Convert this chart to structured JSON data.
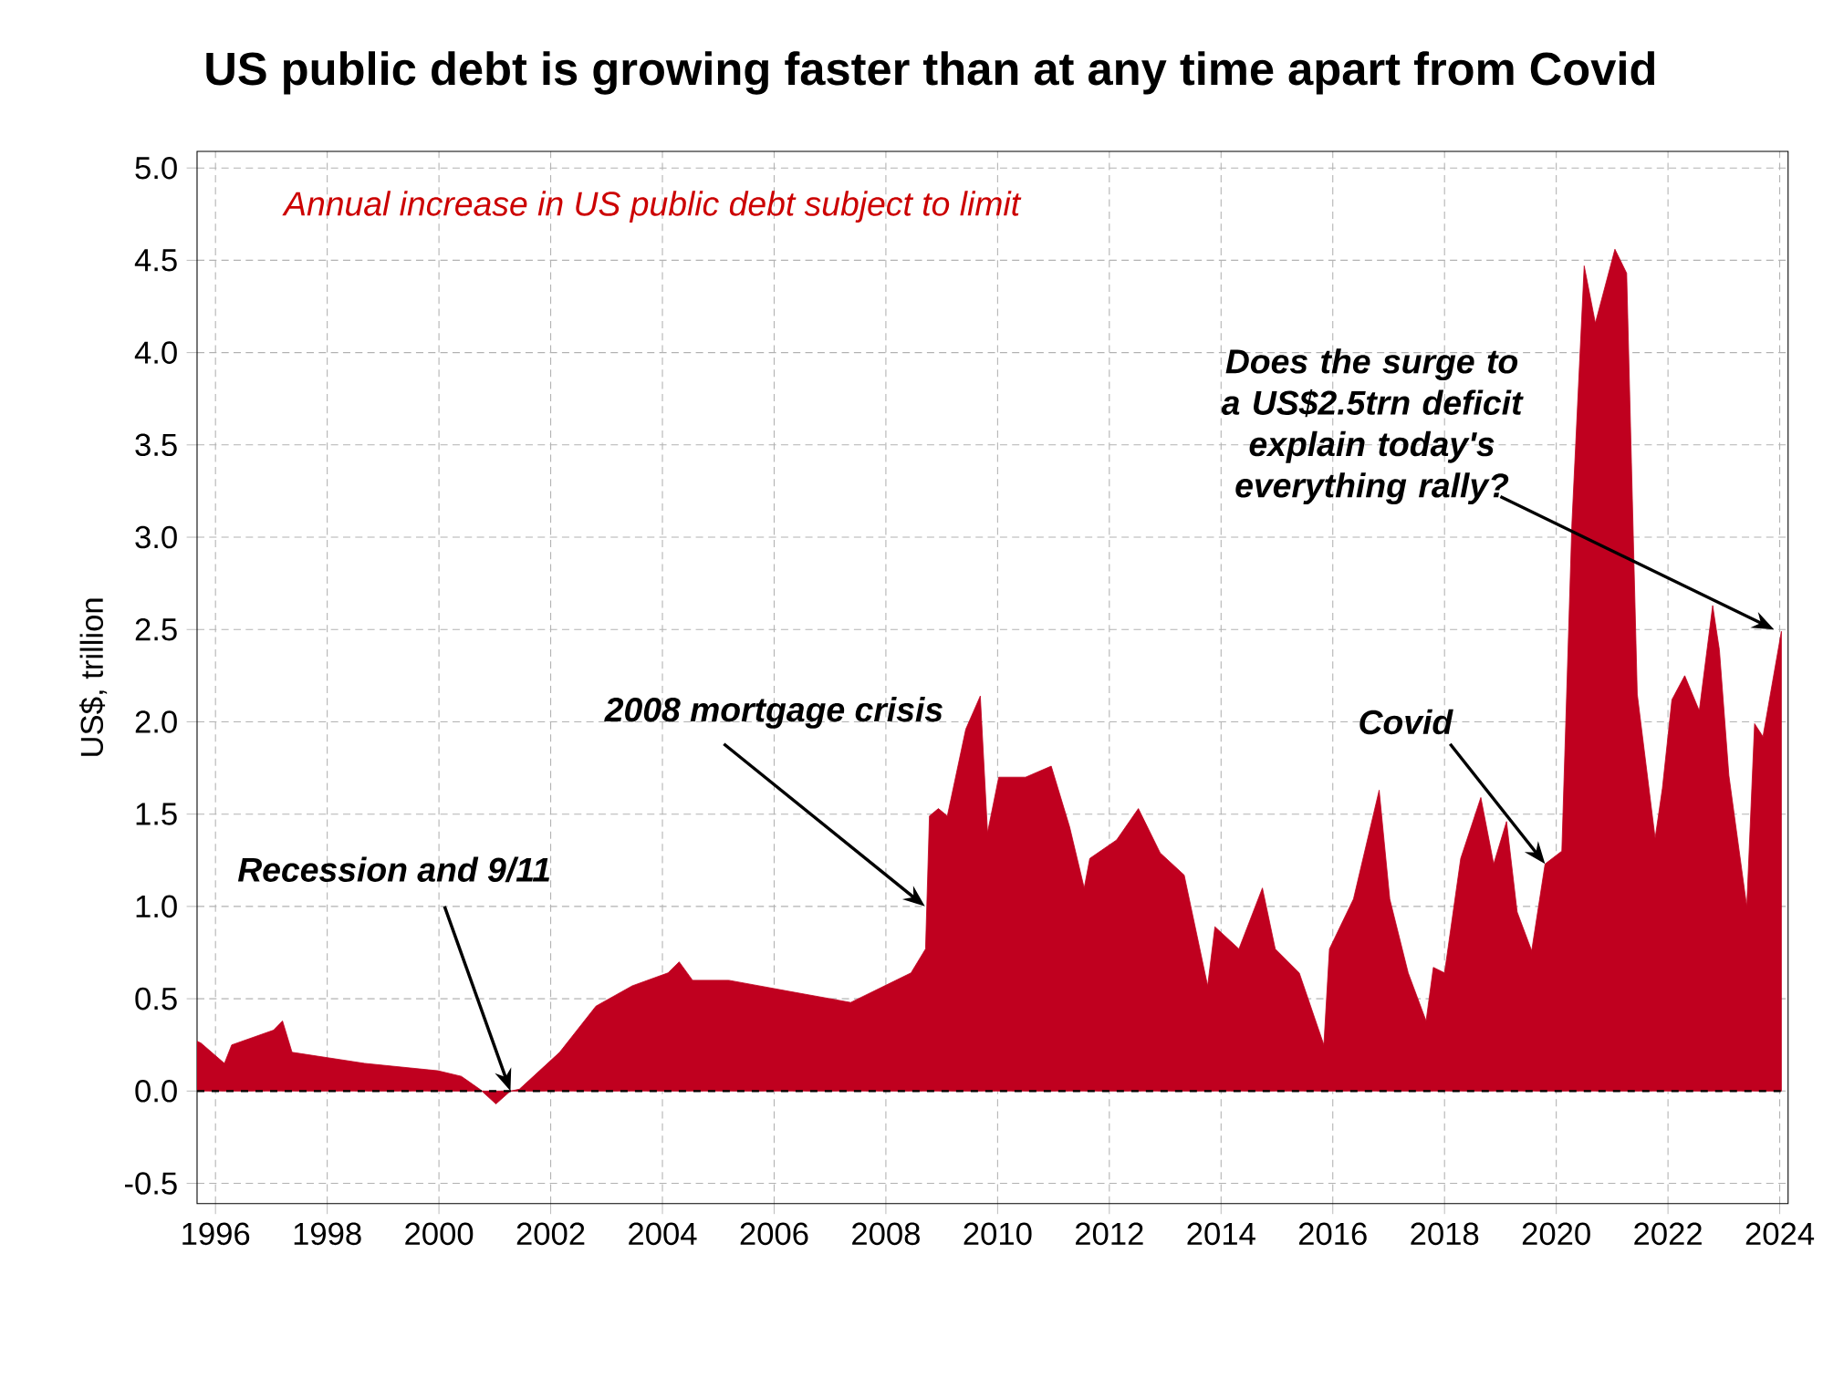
{
  "chart_data": {
    "type": "area",
    "title": "US public debt is growing faster than at any time apart from Covid",
    "subtitle": "Annual increase in US public debt subject to limit",
    "ylabel": "US$, trillion",
    "x": [
      1995.67,
      1995.74,
      1996.16,
      1996.29,
      1997.04,
      1997.2,
      1997.37,
      1998.67,
      1999.98,
      2000.4,
      2000.73,
      2001.02,
      2001.28,
      2001.44,
      2002.16,
      2002.81,
      2003.46,
      2004.1,
      2004.3,
      2004.54,
      2005.19,
      2006.27,
      2007.37,
      2008.45,
      2008.71,
      2008.78,
      2008.94,
      2009.1,
      2009.43,
      2009.69,
      2009.82,
      2010.02,
      2010.5,
      2010.96,
      2011.29,
      2011.55,
      2011.65,
      2012.13,
      2012.52,
      2012.91,
      2013.34,
      2013.76,
      2013.89,
      2014.32,
      2014.74,
      2014.97,
      2015.4,
      2015.84,
      2015.94,
      2016.37,
      2016.83,
      2017.02,
      2017.35,
      2017.67,
      2017.8,
      2018.0,
      2018.29,
      2018.65,
      2018.88,
      2019.11,
      2019.3,
      2019.56,
      2019.8,
      2020.1,
      2020.28,
      2020.5,
      2020.7,
      2021.05,
      2021.26,
      2021.45,
      2021.77,
      2021.9,
      2022.07,
      2022.3,
      2022.56,
      2022.8,
      2022.92,
      2023.09,
      2023.41,
      2023.55,
      2023.7,
      2024.03
    ],
    "series": [
      {
        "color": "#c0001f",
        "values": [
          0.27,
          0.26,
          0.15,
          0.25,
          0.33,
          0.38,
          0.21,
          0.15,
          0.11,
          0.08,
          0.01,
          -0.07,
          0.0,
          0.01,
          0.21,
          0.46,
          0.57,
          0.64,
          0.7,
          0.6,
          0.6,
          0.54,
          0.48,
          0.64,
          0.77,
          1.49,
          1.53,
          1.49,
          1.96,
          2.14,
          1.4,
          1.7,
          1.7,
          1.76,
          1.43,
          1.1,
          1.26,
          1.36,
          1.53,
          1.29,
          1.17,
          0.57,
          0.89,
          0.77,
          1.1,
          0.77,
          0.64,
          0.25,
          0.77,
          1.04,
          1.63,
          1.04,
          0.64,
          0.38,
          0.67,
          0.64,
          1.26,
          1.59,
          1.23,
          1.46,
          0.97,
          0.76,
          1.23,
          1.3,
          3.07,
          4.47,
          4.16,
          4.56,
          4.43,
          2.15,
          1.37,
          1.64,
          2.12,
          2.25,
          2.06,
          2.63,
          2.39,
          1.71,
          1.0,
          1.99,
          1.92,
          2.49
        ]
      }
    ],
    "xlim": [
      1995.67,
      2024.15
    ],
    "ylim": [
      -0.61,
      5.09
    ],
    "xticks": [
      1996,
      1998,
      2000,
      2002,
      2004,
      2006,
      2008,
      2010,
      2012,
      2014,
      2016,
      2018,
      2020,
      2022,
      2024
    ],
    "yticks": [
      {
        "value": -0.5,
        "label": "-0.5"
      },
      {
        "value": 0,
        "label": "0.0"
      },
      {
        "value": 0.5,
        "label": "0.5"
      },
      {
        "value": 1,
        "label": "1.0"
      },
      {
        "value": 1.5,
        "label": "1.5"
      },
      {
        "value": 2,
        "label": "2.0"
      },
      {
        "value": 2.5,
        "label": "2.5"
      },
      {
        "value": 3,
        "label": "3.0"
      },
      {
        "value": 3.5,
        "label": "3.5"
      },
      {
        "value": 4,
        "label": "4.0"
      },
      {
        "value": 4.5,
        "label": "4.5"
      },
      {
        "value": 5,
        "label": "5.0"
      }
    ],
    "grid": true,
    "ref_lines": [
      {
        "axis": "y",
        "value": 0,
        "color": "#000000",
        "line_style": "dashed"
      }
    ],
    "annotations": [
      {
        "text": "Recession and 9/11",
        "x": 2001.28,
        "y": 0.0
      },
      {
        "text": "2008 mortgage crisis",
        "x": 2008.7,
        "y": 1.0
      },
      {
        "text": "Covid",
        "x": 2019.8,
        "y": 1.23
      },
      {
        "text": "Does the surge to a US$2.5trn deficit explain today's everything rally?",
        "x": 2023.9,
        "y": 2.5
      }
    ]
  }
}
